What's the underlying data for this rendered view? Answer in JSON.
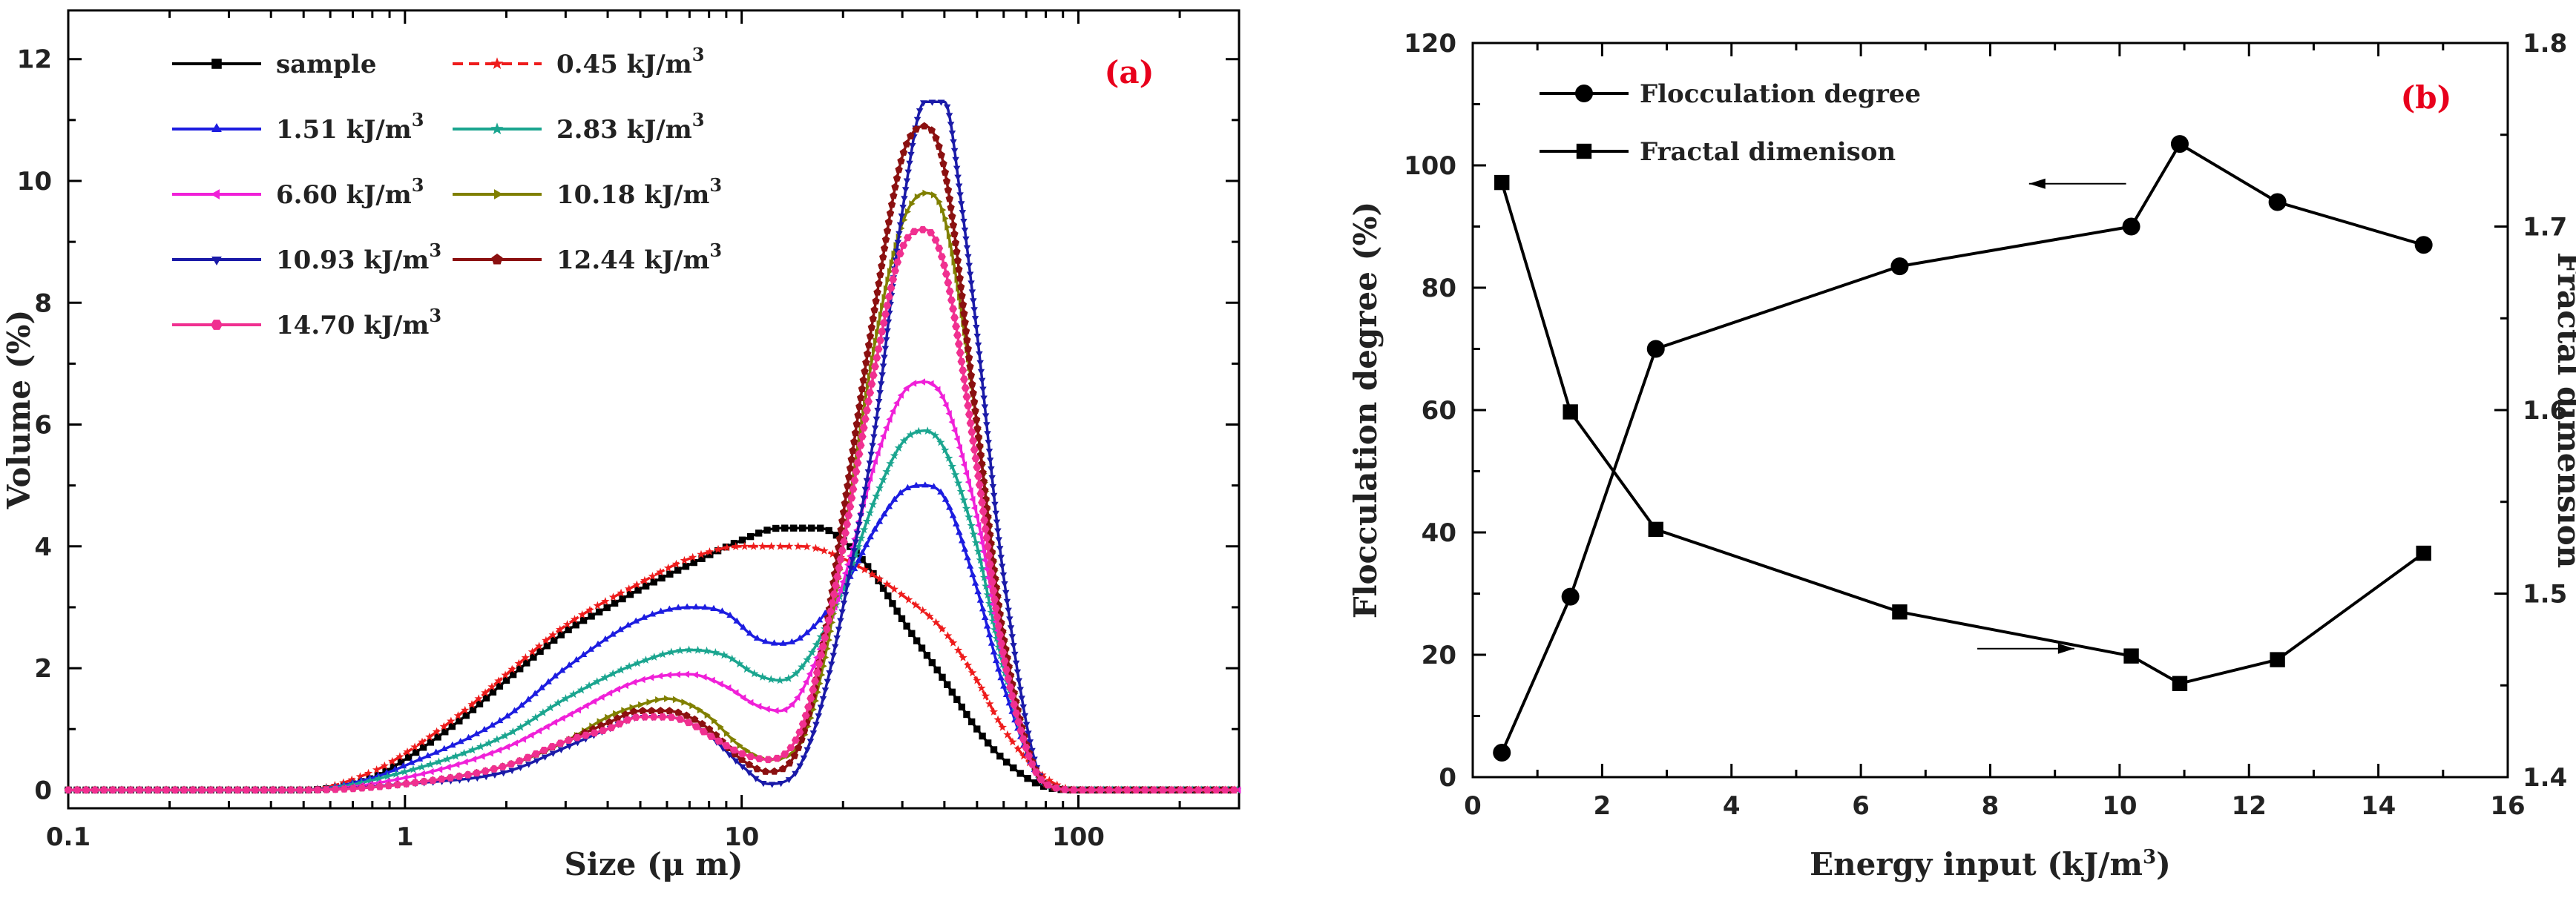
{
  "chart_data": [
    {
      "type": "line",
      "panel_label": "(a)",
      "xscale": "log",
      "xlim": [
        0.1,
        300
      ],
      "ylim": [
        -0.3,
        12.8
      ],
      "xlabel": "Size (μ m)",
      "ylabel": "Volume (%)",
      "xticks": [
        0.1,
        1,
        10,
        100
      ],
      "xtick_labels": [
        "0.1",
        "1",
        "10",
        "100"
      ],
      "yticks": [
        0,
        2,
        4,
        6,
        8,
        10,
        12
      ],
      "ytick_labels": [
        "0",
        "2",
        "4",
        "6",
        "8",
        "10",
        "12"
      ],
      "legend_position": "top-left",
      "series": [
        {
          "name": "sample",
          "legend_text": "sample",
          "legend_sup": "",
          "color": "#000000",
          "marker": "square",
          "dashed": false,
          "bold_label": true,
          "x": [
            0.1,
            0.5,
            0.8,
            1,
            1.5,
            2,
            3,
            4,
            5,
            7,
            10,
            13,
            17,
            20,
            25,
            30,
            40,
            50,
            60,
            80,
            100,
            300
          ],
          "y": [
            0,
            0,
            0.2,
            0.5,
            1.2,
            1.8,
            2.6,
            3.0,
            3.3,
            3.7,
            4.1,
            4.3,
            4.3,
            4.1,
            3.5,
            2.8,
            1.8,
            1.0,
            0.5,
            0.05,
            0,
            0
          ]
        },
        {
          "name": "0.45 kJ/m3",
          "legend_text": "0.45 kJ/m",
          "legend_sup": "3",
          "color": "#ee1c1c",
          "marker": "star",
          "dashed": true,
          "bold_label": false,
          "x": [
            0.1,
            0.5,
            0.8,
            1,
            1.5,
            2,
            3,
            5,
            7,
            10,
            15,
            20,
            30,
            40,
            50,
            60,
            80,
            100,
            300
          ],
          "y": [
            0,
            0,
            0.3,
            0.6,
            1.3,
            1.9,
            2.7,
            3.4,
            3.8,
            4.0,
            4.0,
            3.8,
            3.2,
            2.6,
            1.8,
            1.0,
            0.2,
            0,
            0
          ]
        },
        {
          "name": "1.51 kJ/m3",
          "legend_text": "1.51 kJ/m",
          "legend_sup": "3",
          "color": "#1c1ce0",
          "marker": "triangle-up",
          "dashed": false,
          "bold_label": false,
          "x": [
            0.1,
            0.5,
            0.8,
            1,
            2,
            3,
            5,
            7,
            9,
            11,
            13,
            15,
            20,
            25,
            30,
            35,
            40,
            50,
            60,
            80,
            100,
            300
          ],
          "y": [
            0,
            0,
            0.2,
            0.4,
            1.2,
            2.0,
            2.8,
            3.0,
            2.9,
            2.5,
            2.4,
            2.5,
            3.3,
            4.3,
            4.9,
            5.0,
            4.8,
            3.3,
            1.7,
            0.1,
            0,
            0
          ]
        },
        {
          "name": "2.83 kJ/m3",
          "legend_text": "2.83 kJ/m",
          "legend_sup": "3",
          "color": "#1aa58f",
          "marker": "star",
          "dashed": false,
          "bold_label": false,
          "x": [
            0.1,
            0.5,
            1,
            2,
            3,
            5,
            7,
            9,
            11,
            13,
            15,
            20,
            25,
            30,
            35,
            40,
            50,
            60,
            80,
            100,
            300
          ],
          "y": [
            0,
            0,
            0.3,
            0.9,
            1.5,
            2.1,
            2.3,
            2.2,
            1.9,
            1.8,
            2.0,
            3.3,
            4.8,
            5.7,
            5.9,
            5.6,
            4.0,
            2.0,
            0.1,
            0,
            0
          ]
        },
        {
          "name": "6.60 kJ/m3",
          "legend_text": "6.60 kJ/m",
          "legend_sup": "3",
          "color": "#f020d8",
          "marker": "triangle-left",
          "dashed": false,
          "bold_label": false,
          "x": [
            0.1,
            0.5,
            1,
            2,
            3,
            5,
            7,
            9,
            11,
            13,
            15,
            20,
            25,
            30,
            35,
            40,
            50,
            60,
            80,
            100,
            300
          ],
          "y": [
            0,
            0,
            0.2,
            0.7,
            1.2,
            1.8,
            1.9,
            1.7,
            1.4,
            1.3,
            1.6,
            3.4,
            5.4,
            6.5,
            6.7,
            6.4,
            4.5,
            2.2,
            0.1,
            0,
            0
          ]
        },
        {
          "name": "10.18 kJ/m3",
          "legend_text": "10.18 kJ/m",
          "legend_sup": "3",
          "color": "#808000",
          "marker": "triangle-right",
          "dashed": false,
          "bold_label": false,
          "x": [
            0.1,
            0.5,
            1,
            2,
            3,
            4,
            5,
            6,
            7,
            8,
            10,
            12,
            15,
            18,
            20,
            25,
            30,
            35,
            40,
            50,
            60,
            80,
            100,
            300
          ],
          "y": [
            0,
            0,
            0.1,
            0.4,
            0.8,
            1.2,
            1.4,
            1.5,
            1.4,
            1.2,
            0.7,
            0.5,
            0.8,
            2.4,
            4.0,
            7.4,
            9.3,
            9.8,
            9.4,
            6.0,
            2.5,
            0.1,
            0,
            0
          ]
        },
        {
          "name": "10.93 kJ/m3",
          "legend_text": "10.93 kJ/m",
          "legend_sup": "3",
          "color": "#1a1aa8",
          "marker": "triangle-down",
          "dashed": false,
          "bold_label": false,
          "x": [
            0.1,
            0.5,
            1,
            2,
            3,
            4,
            5,
            6,
            7,
            8,
            10,
            12,
            14,
            16,
            18,
            20,
            25,
            30,
            35,
            40,
            45,
            50,
            60,
            80,
            100,
            300
          ],
          "y": [
            0,
            0,
            0.1,
            0.3,
            0.7,
            1.0,
            1.2,
            1.2,
            1.1,
            0.9,
            0.4,
            0.1,
            0.2,
            0.8,
            1.8,
            3.0,
            6.0,
            9.5,
            11.3,
            11.3,
            9.6,
            7.5,
            3.5,
            0.1,
            0,
            0
          ]
        },
        {
          "name": "12.44 kJ/m3",
          "legend_text": "12.44 kJ/m",
          "legend_sup": "3",
          "color": "#8b1010",
          "marker": "pentagon",
          "dashed": false,
          "bold_label": false,
          "x": [
            0.1,
            0.5,
            1,
            2,
            3,
            4,
            5,
            6,
            7,
            8,
            10,
            12,
            15,
            18,
            20,
            25,
            30,
            35,
            40,
            50,
            60,
            80,
            100,
            300
          ],
          "y": [
            0,
            0,
            0.1,
            0.4,
            0.8,
            1.1,
            1.3,
            1.3,
            1.2,
            1.0,
            0.5,
            0.3,
            0.8,
            2.8,
            4.5,
            8.0,
            10.4,
            10.9,
            10.2,
            6.0,
            2.5,
            0.1,
            0,
            0
          ]
        },
        {
          "name": "14.70 kJ/m3",
          "legend_text": "14.70 kJ/m",
          "legend_sup": "3",
          "color": "#f03090",
          "marker": "hexagon",
          "dashed": false,
          "bold_label": false,
          "x": [
            0.1,
            0.5,
            1,
            2,
            3,
            4,
            5,
            6,
            7,
            8,
            10,
            12,
            15,
            18,
            20,
            25,
            30,
            35,
            40,
            50,
            60,
            80,
            100,
            300
          ],
          "y": [
            0,
            0,
            0.1,
            0.4,
            0.8,
            1.0,
            1.2,
            1.2,
            1.1,
            0.9,
            0.6,
            0.5,
            1.0,
            2.7,
            4.0,
            7.0,
            8.9,
            9.2,
            8.6,
            5.3,
            2.2,
            0.1,
            0,
            0
          ]
        }
      ]
    },
    {
      "type": "line",
      "panel_label": "(b)",
      "xlim": [
        0,
        16
      ],
      "ylim_left": [
        0,
        120
      ],
      "ylim_right": [
        1.4,
        1.8
      ],
      "xlabel": "Energy input (kJ/m",
      "xlabel_sup": "3",
      "xlabel_end": ")",
      "ylabel_left": "Flocculation degree (%)",
      "ylabel_right": "Fractal dimension",
      "xticks": [
        0,
        2,
        4,
        6,
        8,
        10,
        12,
        14,
        16
      ],
      "xtick_labels": [
        "0",
        "2",
        "4",
        "6",
        "8",
        "10",
        "12",
        "14",
        "16"
      ],
      "yticks_left": [
        0,
        20,
        40,
        60,
        80,
        100,
        120
      ],
      "ytick_labels_left": [
        "0",
        "20",
        "40",
        "60",
        "80",
        "100",
        "120"
      ],
      "yticks_right": [
        1.4,
        1.5,
        1.6,
        1.7,
        1.8
      ],
      "ytick_labels_right": [
        "1.4",
        "1.5",
        "1.6",
        "1.7",
        "1.8"
      ],
      "legend_position": "top-left",
      "series": [
        {
          "name": "Flocculation degree",
          "axis": "left",
          "marker": "circle",
          "color": "#000000",
          "x": [
            0.45,
            1.51,
            2.83,
            6.6,
            10.18,
            10.93,
            12.44,
            14.7
          ],
          "y": [
            4,
            29.5,
            70,
            83.5,
            90,
            103.5,
            94,
            87
          ]
        },
        {
          "name": "Fractal dimenison",
          "axis": "right",
          "marker": "square",
          "color": "#000000",
          "x": [
            0.45,
            1.51,
            2.83,
            6.6,
            10.18,
            10.93,
            12.44,
            14.7
          ],
          "y": [
            1.724,
            1.599,
            1.535,
            1.49,
            1.466,
            1.451,
            1.464,
            1.522
          ]
        }
      ],
      "annotations": [
        {
          "type": "arrow",
          "direction": "left",
          "points_to": "left-axis",
          "x_from": 10.1,
          "x_to": 8.6,
          "y_left": 97
        },
        {
          "type": "arrow",
          "direction": "right",
          "points_to": "right-axis",
          "x_from": 7.8,
          "x_to": 9.3,
          "y_left": 21
        }
      ]
    }
  ]
}
